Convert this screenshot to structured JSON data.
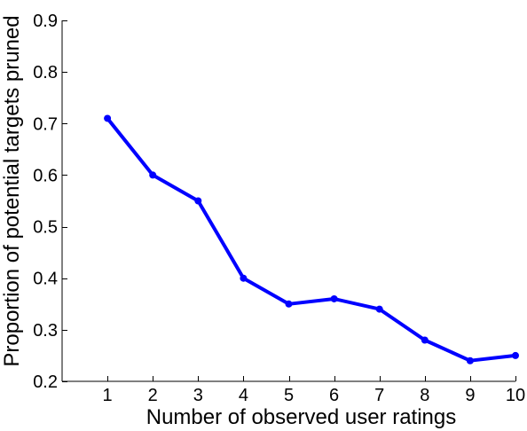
{
  "chart_data": {
    "type": "line",
    "title": "",
    "xlabel": "Number of observed user ratings",
    "ylabel": "Proportion of potential targets pruned",
    "xlim": [
      0,
      10
    ],
    "ylim": [
      0.2,
      0.9
    ],
    "x_ticks": [
      1,
      2,
      3,
      4,
      5,
      6,
      7,
      8,
      9,
      10
    ],
    "y_ticks": [
      0.2,
      0.3,
      0.4,
      0.5,
      0.6,
      0.7,
      0.8,
      0.9
    ],
    "y_tick_labels": [
      "0.2",
      "0.3",
      "0.4",
      "0.5",
      "0.6",
      "0.7",
      "0.8",
      "0.9"
    ],
    "grid": false,
    "legend": "none",
    "series": [
      {
        "x": [
          1,
          2,
          3,
          4,
          5,
          6,
          7,
          8,
          9,
          10
        ],
        "values": [
          0.71,
          0.6,
          0.55,
          0.4,
          0.35,
          0.36,
          0.34,
          0.28,
          0.24,
          0.25
        ],
        "color": "#0000ff",
        "marker": "dot"
      }
    ]
  }
}
